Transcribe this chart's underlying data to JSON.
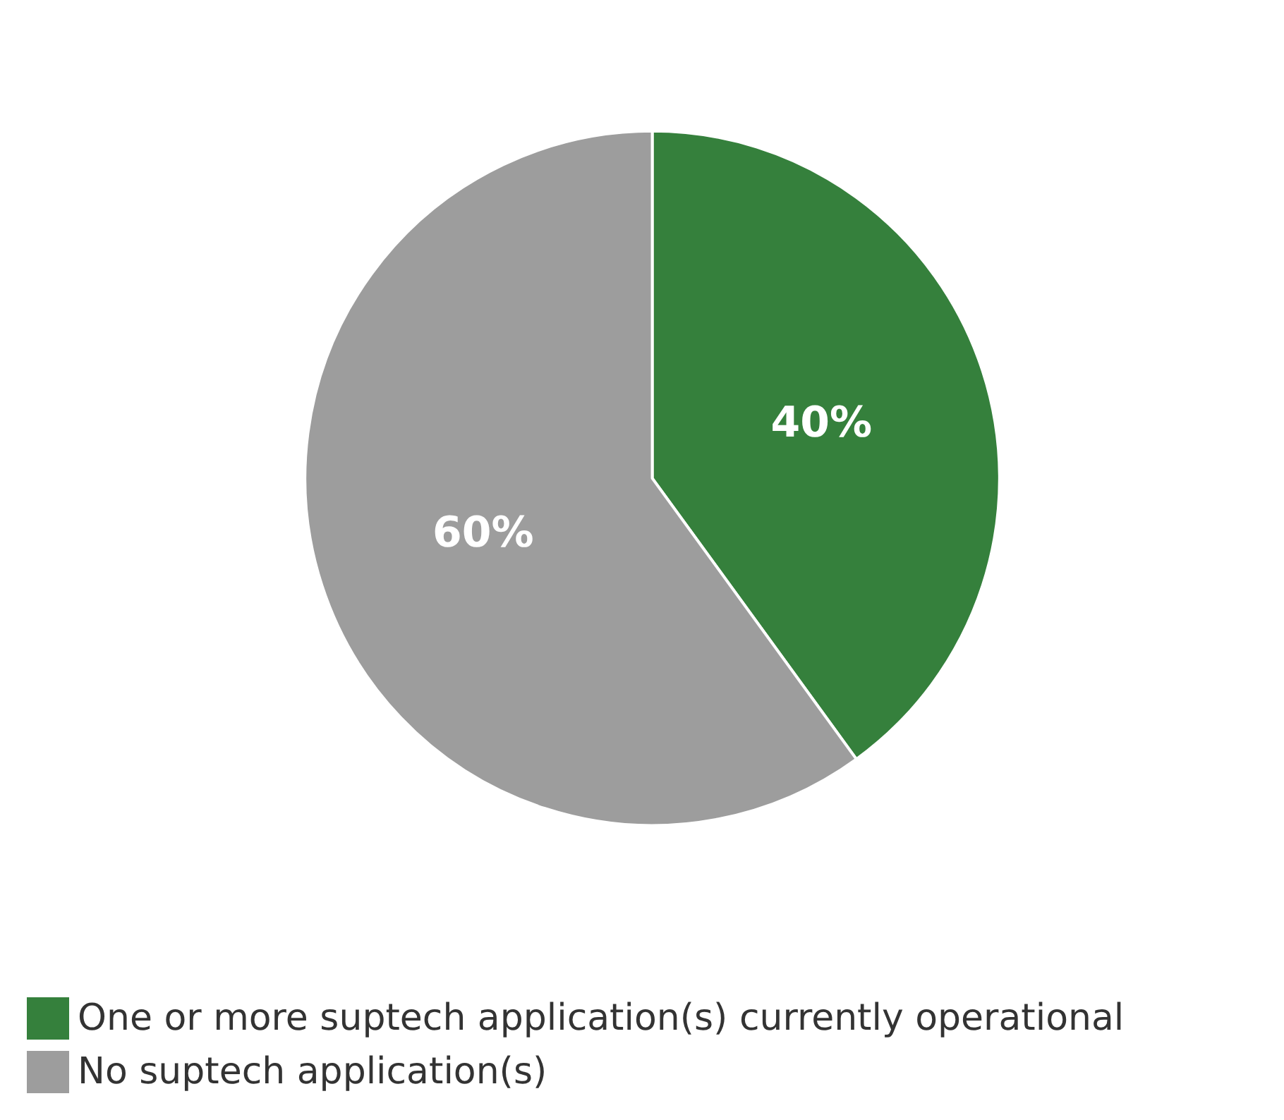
{
  "chart_data": {
    "type": "pie",
    "categories": [
      "One or more suptech application(s) currently operational",
      "No suptech application(s)"
    ],
    "values": [
      40,
      60
    ],
    "colors": [
      "#35803c",
      "#9d9d9d"
    ],
    "value_labels": [
      "40%",
      "60%"
    ],
    "legend": "bottom left"
  }
}
